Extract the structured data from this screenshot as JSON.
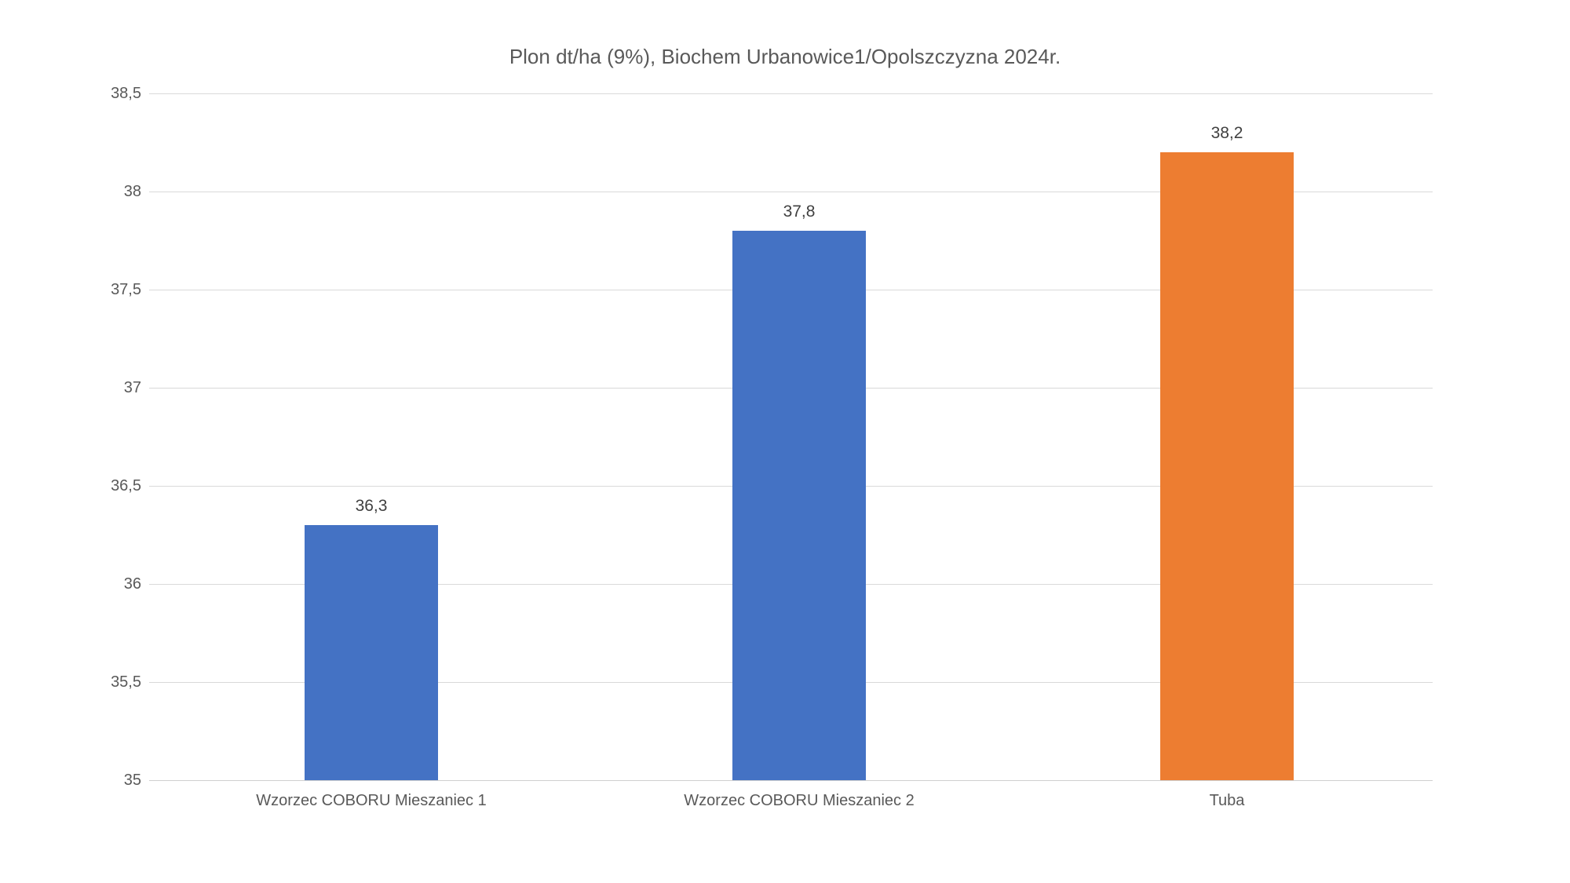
{
  "colors": {
    "background": "#FFFFFF",
    "gridline": "#D9D9D9",
    "axis_text": "#595959",
    "title_text": "#595959",
    "data_label_text": "#404040",
    "series_blue": "#4472C4",
    "series_orange": "#ED7D31"
  },
  "chart_data": {
    "type": "bar",
    "title": "Plon dt/ha (9%), Biochem Urbanowice1/Opolszczyzna 2024r.",
    "xlabel": "",
    "ylabel": "",
    "grid": true,
    "legend": "none",
    "ylim": [
      35,
      38.5
    ],
    "ytick_step": 0.5,
    "yticks": [
      {
        "value": 35,
        "label": "35"
      },
      {
        "value": 35.5,
        "label": "35,5"
      },
      {
        "value": 36,
        "label": "36"
      },
      {
        "value": 36.5,
        "label": "36,5"
      },
      {
        "value": 37,
        "label": "37"
      },
      {
        "value": 37.5,
        "label": "37,5"
      },
      {
        "value": 38,
        "label": "38"
      },
      {
        "value": 38.5,
        "label": "38,5"
      }
    ],
    "categories": [
      "Wzorzec COBORU Mieszaniec 1",
      "Wzorzec COBORU Mieszaniec 2",
      "Tuba"
    ],
    "values": [
      36.3,
      37.8,
      38.2
    ],
    "value_labels": [
      "36,3",
      "37,8",
      "38,2"
    ],
    "bar_colors": [
      "#4472C4",
      "#4472C4",
      "#ED7D31"
    ]
  }
}
